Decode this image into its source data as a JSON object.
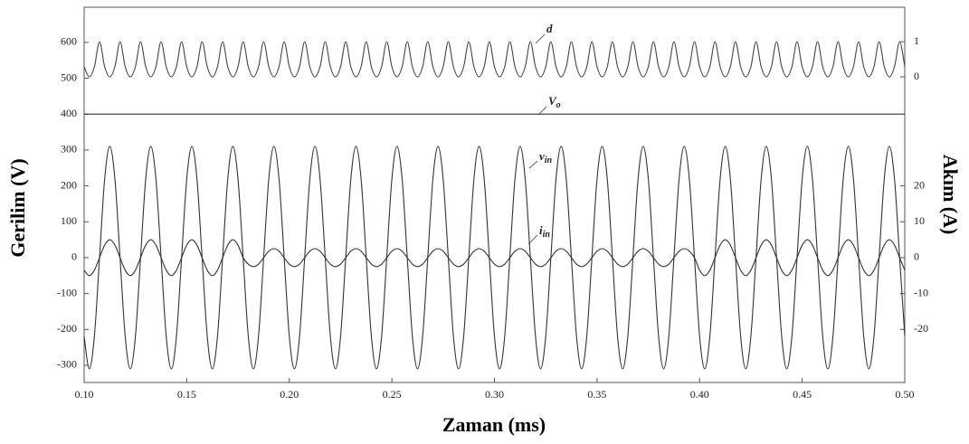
{
  "chart_data": {
    "type": "line",
    "xlabel": "Zaman (ms)",
    "ylabel": "Gerilim (V)",
    "y2label": "Akım (A)",
    "x": [
      0.1,
      0.1025,
      0.105,
      0.1075,
      0.11,
      0.1125,
      0.115,
      0.1175,
      0.12,
      0.1225,
      0.125,
      0.1275,
      0.13,
      0.1325,
      0.135,
      0.1375,
      0.14,
      0.1425,
      0.145,
      0.1475,
      0.15,
      0.1525,
      0.155,
      0.1575,
      0.16,
      0.1625,
      0.165,
      0.1675,
      0.17,
      0.1725,
      0.175,
      0.1775,
      0.18,
      0.1825,
      0.185,
      0.1875,
      0.19,
      0.1925,
      0.195,
      0.1975,
      0.2,
      0.2025,
      0.205,
      0.2075,
      0.21,
      0.2125,
      0.215,
      0.2175,
      0.22,
      0.2225,
      0.225,
      0.2275,
      0.23,
      0.2325,
      0.235,
      0.2375,
      0.24,
      0.2425,
      0.245,
      0.2475,
      0.25,
      0.2525,
      0.255,
      0.2575,
      0.26,
      0.2625,
      0.265,
      0.2675,
      0.27,
      0.2725,
      0.275,
      0.2775,
      0.28,
      0.2825,
      0.285,
      0.2875,
      0.29,
      0.2925,
      0.295,
      0.2975,
      0.3,
      0.3025,
      0.305,
      0.3075,
      0.31,
      0.3125,
      0.315,
      0.3175,
      0.32,
      0.3225,
      0.325,
      0.3275,
      0.33,
      0.3325,
      0.335,
      0.3375,
      0.34,
      0.3425,
      0.345,
      0.3475,
      0.35,
      0.3525,
      0.355,
      0.3575,
      0.36,
      0.3625,
      0.365,
      0.3675,
      0.37,
      0.3725,
      0.375,
      0.3775,
      0.38,
      0.3825,
      0.385,
      0.3875,
      0.39,
      0.3925,
      0.395,
      0.3975,
      0.4,
      0.4025,
      0.405,
      0.4075,
      0.41,
      0.4125,
      0.415,
      0.4175,
      0.42,
      0.4225,
      0.425,
      0.4275,
      0.43,
      0.4325,
      0.435,
      0.4375,
      0.44,
      0.4425,
      0.445,
      0.4475,
      0.45,
      0.4525,
      0.455,
      0.4575,
      0.46,
      0.4625,
      0.465,
      0.4675,
      0.47,
      0.4725,
      0.475,
      0.4775,
      0.48,
      0.4825,
      0.485,
      0.4875,
      0.49,
      0.4925,
      0.495,
      0.4975,
      0.5
    ],
    "series": [
      {
        "name": "d",
        "axis": "y3",
        "color": "#444444",
        "values": [
          0.29,
          0,
          0.29,
          1,
          0.29,
          0,
          0.29,
          1,
          0.29,
          0,
          0.29,
          1,
          0.29,
          0,
          0.29,
          1,
          0.29,
          0,
          0.29,
          1,
          0.29,
          0,
          0.29,
          1,
          0.29,
          0,
          0.29,
          1,
          0.29,
          0,
          0.29,
          1,
          0.29,
          0,
          0.29,
          1,
          0.29,
          0,
          0.29,
          1,
          0.29,
          0,
          0.29,
          1,
          0.29,
          0,
          0.29,
          1,
          0.29,
          0,
          0.29,
          1,
          0.29,
          0,
          0.29,
          1,
          0.29,
          0,
          0.29,
          1,
          0.29,
          0,
          0.29,
          1,
          0.29,
          0,
          0.29,
          1,
          0.29,
          0,
          0.29,
          1,
          0.29,
          0,
          0.29,
          1,
          0.29,
          0,
          0.29,
          1,
          0.29,
          0,
          0.29,
          1,
          0.29,
          0,
          0.29,
          1,
          0.29,
          0,
          0.29,
          1,
          0.29,
          0,
          0.29,
          1,
          0.29,
          0,
          0.29,
          1,
          0.29,
          0,
          0.29,
          1,
          0.29,
          0,
          0.29,
          1,
          0.29,
          0,
          0.29,
          1,
          0.29,
          0,
          0.29,
          1,
          0.29,
          0,
          0.29,
          1,
          0.29,
          0,
          0.29,
          1,
          0.29,
          0,
          0.29,
          1,
          0.29,
          0,
          0.29,
          1,
          0.29,
          0,
          0.29,
          1,
          0.29,
          0,
          0.29,
          1,
          0.29,
          0,
          0.29,
          1,
          0.29,
          0,
          0.29,
          1,
          0.29,
          0,
          0.29,
          1,
          0.29,
          0,
          0.29,
          1,
          0.29,
          0,
          0.29,
          1,
          0.29
        ]
      },
      {
        "name": "Vo",
        "color": "#333333",
        "x": [
          0.1,
          0.5
        ],
        "values": [
          400,
          400
        ]
      },
      {
        "name": "vin",
        "color": "#333333",
        "values": [
          -219,
          -310,
          -219,
          0,
          219,
          310,
          219,
          0,
          -219,
          -310,
          -219,
          0,
          219,
          310,
          219,
          0,
          -219,
          -310,
          -219,
          0,
          219,
          310,
          219,
          0,
          -219,
          -310,
          -219,
          0,
          219,
          310,
          219,
          0,
          -219,
          -310,
          -219,
          0,
          219,
          310,
          219,
          0,
          -219,
          -310,
          -219,
          0,
          219,
          310,
          219,
          0,
          -219,
          -310,
          -219,
          0,
          219,
          310,
          219,
          0,
          -219,
          -310,
          -219,
          0,
          219,
          310,
          219,
          0,
          -219,
          -310,
          -219,
          0,
          219,
          310,
          219,
          0,
          -219,
          -310,
          -219,
          0,
          219,
          310,
          219,
          0,
          -219,
          -310,
          -219,
          0,
          219,
          310,
          219,
          0,
          -219,
          -310,
          -219,
          0,
          219,
          310,
          219,
          0,
          -219,
          -310,
          -219,
          0,
          219,
          310,
          219,
          0,
          -219,
          -310,
          -219,
          0,
          219,
          310,
          219,
          0,
          -219,
          -310,
          -219,
          0,
          219,
          310,
          219,
          0,
          -219,
          -310,
          -219,
          0,
          219,
          310,
          219,
          0,
          -219,
          -310,
          -219,
          0,
          219,
          310,
          219,
          0,
          -219,
          -310,
          -219,
          0,
          219,
          310,
          219,
          0,
          -219,
          -310,
          -219,
          0,
          219,
          310,
          219,
          0,
          -219,
          -310,
          -219,
          0,
          219,
          310,
          219,
          0,
          -219
        ]
      },
      {
        "name": "iin",
        "axis": "y2",
        "color": "#333333",
        "values": [
          -3.5,
          -5,
          -3.5,
          0,
          3.5,
          5,
          3.5,
          0,
          -3.5,
          -5,
          -3.5,
          0,
          3.5,
          5,
          3.5,
          0,
          -3.5,
          -5,
          -3.5,
          0,
          3.5,
          5,
          3.5,
          0,
          -3.5,
          -5,
          -3.5,
          0,
          3.5,
          5,
          3.5,
          0,
          -1.8,
          -2.5,
          -1.8,
          0,
          1.8,
          2.5,
          1.8,
          0,
          -1.8,
          -2.5,
          -1.8,
          0,
          1.8,
          2.5,
          1.8,
          0,
          -1.8,
          -2.5,
          -1.8,
          0,
          1.8,
          2.5,
          1.8,
          0,
          -1.8,
          -2.5,
          -1.8,
          0,
          1.8,
          2.5,
          1.8,
          0,
          -1.8,
          -2.5,
          -1.8,
          0,
          1.8,
          2.5,
          1.8,
          0,
          -1.8,
          -2.5,
          -1.8,
          0,
          1.8,
          2.5,
          1.8,
          0,
          -1.8,
          -2.5,
          -1.8,
          0,
          1.8,
          2.5,
          1.8,
          0,
          -1.8,
          -2.5,
          -1.8,
          0,
          1.8,
          2.5,
          1.8,
          0,
          -1.8,
          -2.5,
          -1.8,
          0,
          1.8,
          2.5,
          1.8,
          0,
          -1.8,
          -2.5,
          -1.8,
          0,
          1.8,
          2.5,
          1.8,
          0,
          -1.8,
          -2.5,
          -1.8,
          0,
          1.8,
          2.5,
          1.8,
          0,
          -3.5,
          -5,
          -3.5,
          0,
          3.5,
          5,
          3.5,
          0,
          -3.5,
          -5,
          -3.5,
          0,
          3.5,
          5,
          3.5,
          0,
          -3.5,
          -5,
          -3.5,
          0,
          3.5,
          5,
          3.5,
          0,
          -3.5,
          -5,
          -3.5,
          0,
          3.5,
          5,
          3.5,
          0,
          -3.5,
          -5,
          -3.5,
          0,
          3.5,
          5,
          3.5,
          0,
          -3.5
        ]
      }
    ],
    "xlim": [
      0.1,
      0.5
    ],
    "xticks": [
      {
        "value": 0.1,
        "label": "0.10"
      },
      {
        "value": 0.15,
        "label": "0.15"
      },
      {
        "value": 0.2,
        "label": "0.20"
      },
      {
        "value": 0.25,
        "label": "0.25"
      },
      {
        "value": 0.3,
        "label": "0.30"
      },
      {
        "value": 0.35,
        "label": "0.35"
      },
      {
        "value": 0.4,
        "label": "0.40"
      },
      {
        "value": 0.45,
        "label": "0.45"
      },
      {
        "value": 0.5,
        "label": "0.50"
      }
    ],
    "ylim": [
      -348,
      698
    ],
    "yticks": [
      -300,
      -200,
      -100,
      0,
      100,
      200,
      300,
      400,
      500,
      600
    ],
    "y2lim": [
      -34.8,
      69.8
    ],
    "y2ticks": [
      -20,
      -10,
      0,
      10,
      20
    ],
    "y3lim": [
      -8.69,
      1.98
    ],
    "y3ticks": [
      0,
      1
    ],
    "grid": false
  }
}
